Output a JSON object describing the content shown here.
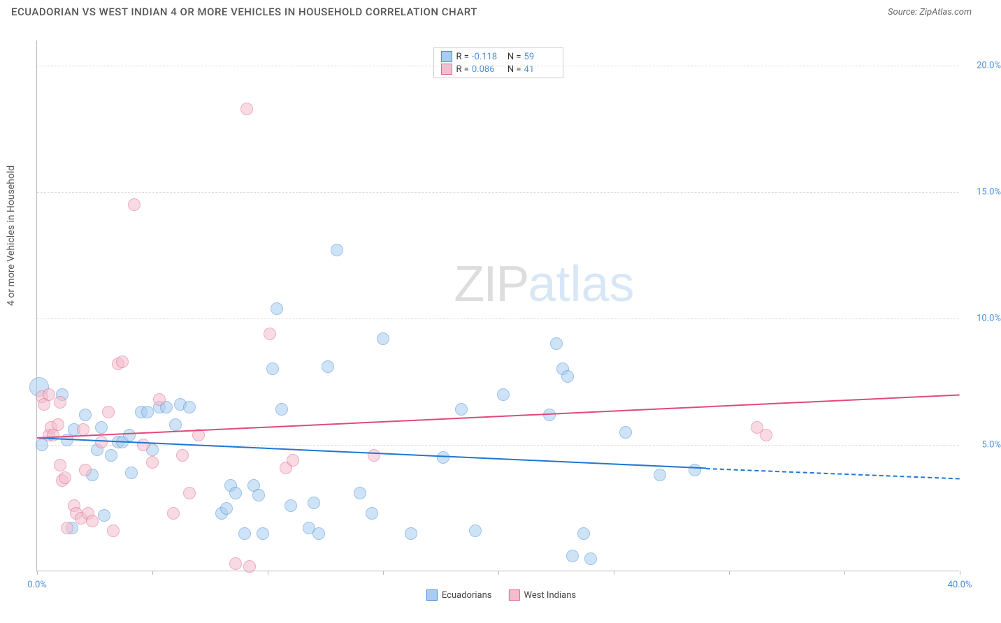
{
  "header": {
    "title": "ECUADORIAN VS WEST INDIAN 4 OR MORE VEHICLES IN HOUSEHOLD CORRELATION CHART",
    "source_prefix": "Source: ",
    "source": "ZipAtlas.com"
  },
  "chart": {
    "type": "scatter",
    "background_color": "#ffffff",
    "grid_color": "#dddddd",
    "axis_color": "#bbbbbb",
    "tick_label_color": "#4a90d9",
    "y_axis_label": "4 or more Vehicles in Household",
    "xlim": [
      0,
      40
    ],
    "ylim": [
      0,
      21
    ],
    "x_ticks": [
      0,
      5,
      10,
      15,
      20,
      25,
      30,
      35,
      40
    ],
    "x_tick_labels": {
      "0": "0.0%",
      "40": "40.0%"
    },
    "y_ticks": [
      5,
      10,
      15,
      20
    ],
    "y_tick_labels": {
      "5": "5.0%",
      "10": "10.0%",
      "15": "15.0%",
      "20": "20.0%"
    },
    "watermark": {
      "part1": "ZIP",
      "part2": "atlas"
    },
    "point_radius": 9,
    "point_opacity": 0.55,
    "series": [
      {
        "name": "Ecuadorians",
        "fill_color": "#a8cdf0",
        "stroke_color": "#4a90d9",
        "trend_color": "#1f77d4",
        "R": "-0.118",
        "N": "59",
        "trend": {
          "x1": 0,
          "y1": 5.3,
          "x2": 29,
          "y2": 4.1,
          "dash_to_x": 40,
          "dash_to_y": 3.7
        },
        "points": [
          [
            0.1,
            7.3,
            14
          ],
          [
            0.2,
            5.0,
            9
          ],
          [
            1.1,
            7.0,
            9
          ],
          [
            1.3,
            5.2,
            9
          ],
          [
            1.5,
            1.7,
            9
          ],
          [
            1.6,
            5.6,
            9
          ],
          [
            2.1,
            6.2,
            9
          ],
          [
            2.4,
            3.8,
            9
          ],
          [
            2.6,
            4.8,
            9
          ],
          [
            2.8,
            5.7,
            9
          ],
          [
            2.9,
            2.2,
            9
          ],
          [
            3.2,
            4.6,
            9
          ],
          [
            3.5,
            5.1,
            9
          ],
          [
            3.7,
            5.1,
            9
          ],
          [
            4.0,
            5.4,
            9
          ],
          [
            4.1,
            3.9,
            9
          ],
          [
            4.5,
            6.3,
            9
          ],
          [
            4.8,
            6.3,
            9
          ],
          [
            5.0,
            4.8,
            9
          ],
          [
            5.3,
            6.5,
            9
          ],
          [
            5.6,
            6.5,
            9
          ],
          [
            6.0,
            5.8,
            9
          ],
          [
            6.2,
            6.6,
            9
          ],
          [
            6.6,
            6.5,
            9
          ],
          [
            8.0,
            2.3,
            9
          ],
          [
            8.2,
            2.5,
            9
          ],
          [
            8.4,
            3.4,
            9
          ],
          [
            8.6,
            3.1,
            9
          ],
          [
            9.0,
            1.5,
            9
          ],
          [
            9.4,
            3.4,
            9
          ],
          [
            9.6,
            3.0,
            9
          ],
          [
            9.8,
            1.5,
            9
          ],
          [
            10.2,
            8.0,
            9
          ],
          [
            10.4,
            10.4,
            9
          ],
          [
            10.6,
            6.4,
            9
          ],
          [
            11.0,
            2.6,
            9
          ],
          [
            11.8,
            1.7,
            9
          ],
          [
            12.0,
            2.7,
            9
          ],
          [
            12.2,
            1.5,
            9
          ],
          [
            12.6,
            8.1,
            9
          ],
          [
            13.0,
            12.7,
            9
          ],
          [
            14.0,
            3.1,
            9
          ],
          [
            14.5,
            2.3,
            9
          ],
          [
            15.0,
            9.2,
            9
          ],
          [
            16.2,
            1.5,
            9
          ],
          [
            17.6,
            4.5,
            9
          ],
          [
            18.4,
            6.4,
            9
          ],
          [
            19.0,
            1.6,
            9
          ],
          [
            20.2,
            7.0,
            9
          ],
          [
            22.2,
            6.2,
            9
          ],
          [
            22.5,
            9.0,
            9
          ],
          [
            22.8,
            8.0,
            9
          ],
          [
            23.0,
            7.7,
            9
          ],
          [
            23.2,
            0.6,
            9
          ],
          [
            24.0,
            0.5,
            9
          ],
          [
            23.7,
            1.5,
            9
          ],
          [
            25.5,
            5.5,
            9
          ],
          [
            27.0,
            3.8,
            9
          ],
          [
            28.5,
            4.0,
            9
          ]
        ]
      },
      {
        "name": "West Indians",
        "fill_color": "#f4bccc",
        "stroke_color": "#e06a8f",
        "trend_color": "#e04a7a",
        "R": "0.086",
        "N": "41",
        "trend": {
          "x1": 0,
          "y1": 5.3,
          "x2": 40,
          "y2": 7.0
        },
        "points": [
          [
            0.2,
            6.9,
            9
          ],
          [
            0.3,
            6.6,
            9
          ],
          [
            0.5,
            7.0,
            9
          ],
          [
            0.5,
            5.4,
            9
          ],
          [
            0.6,
            5.7,
            9
          ],
          [
            0.7,
            5.4,
            9
          ],
          [
            0.9,
            5.8,
            9
          ],
          [
            1.0,
            6.7,
            9
          ],
          [
            1.0,
            4.2,
            9
          ],
          [
            1.1,
            3.6,
            9
          ],
          [
            1.2,
            3.7,
            9
          ],
          [
            1.3,
            1.7,
            9
          ],
          [
            1.6,
            2.6,
            9
          ],
          [
            1.7,
            2.3,
            9
          ],
          [
            1.9,
            2.1,
            9
          ],
          [
            2.0,
            5.6,
            9
          ],
          [
            2.1,
            4.0,
            9
          ],
          [
            2.2,
            2.3,
            9
          ],
          [
            2.4,
            2.0,
            9
          ],
          [
            2.8,
            5.1,
            9
          ],
          [
            3.1,
            6.3,
            9
          ],
          [
            3.3,
            1.6,
            9
          ],
          [
            3.5,
            8.2,
            9
          ],
          [
            3.7,
            8.3,
            9
          ],
          [
            4.2,
            14.5,
            9
          ],
          [
            4.6,
            5.0,
            9
          ],
          [
            5.0,
            4.3,
            9
          ],
          [
            5.3,
            6.8,
            9
          ],
          [
            5.9,
            2.3,
            9
          ],
          [
            6.3,
            4.6,
            9
          ],
          [
            6.6,
            3.1,
            9
          ],
          [
            7.0,
            5.4,
            9
          ],
          [
            8.6,
            0.3,
            9
          ],
          [
            9.1,
            18.3,
            9
          ],
          [
            9.2,
            0.2,
            9
          ],
          [
            10.1,
            9.4,
            9
          ],
          [
            10.8,
            4.1,
            9
          ],
          [
            11.1,
            4.4,
            9
          ],
          [
            31.2,
            5.7,
            9
          ],
          [
            31.6,
            5.4,
            9
          ],
          [
            14.6,
            4.6,
            9
          ]
        ]
      }
    ],
    "legend_bottom": [
      {
        "label": "Ecuadorians",
        "fill": "#a8cdf0",
        "stroke": "#4a90d9"
      },
      {
        "label": "West Indians",
        "fill": "#f4bccc",
        "stroke": "#e06a8f"
      }
    ]
  }
}
